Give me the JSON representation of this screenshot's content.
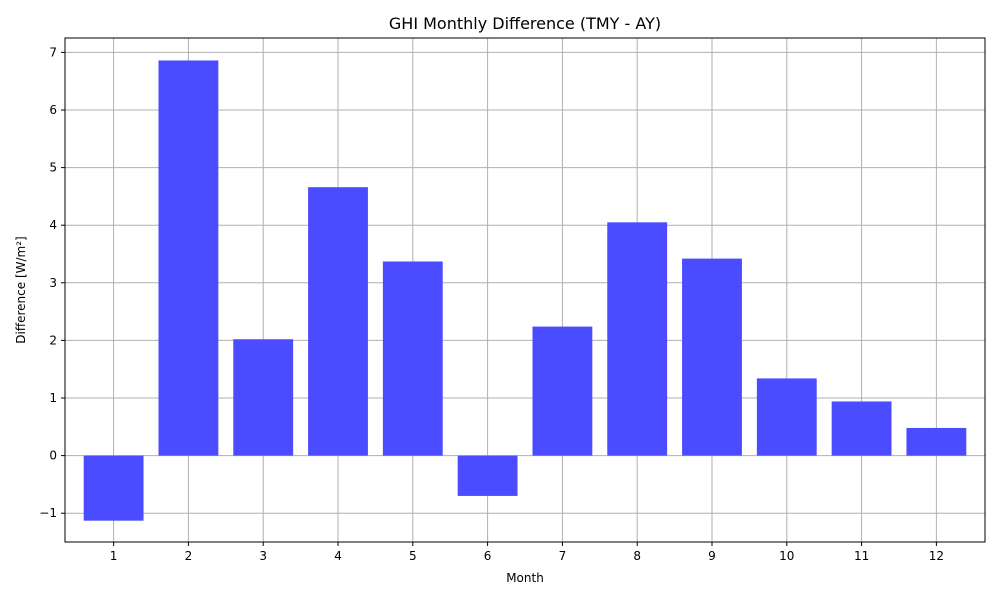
{
  "chart_data": {
    "type": "bar",
    "title": "GHI Monthly Difference (TMY - AY)",
    "xlabel": "Month",
    "ylabel": "Difference [W/m²]",
    "categories": [
      "1",
      "2",
      "3",
      "4",
      "5",
      "6",
      "7",
      "8",
      "9",
      "10",
      "11",
      "12"
    ],
    "values": [
      -1.13,
      6.86,
      2.02,
      4.66,
      3.37,
      -0.7,
      2.24,
      4.05,
      3.42,
      1.34,
      0.94,
      0.48
    ],
    "ylim": [
      -1.5,
      7.25
    ],
    "yticks": [
      -1,
      0,
      1,
      2,
      3,
      4,
      5,
      6,
      7
    ],
    "ytick_labels": [
      "−1",
      "0",
      "1",
      "2",
      "3",
      "4",
      "5",
      "6",
      "7"
    ],
    "bar_color": "#4b4bff",
    "grid": true
  }
}
